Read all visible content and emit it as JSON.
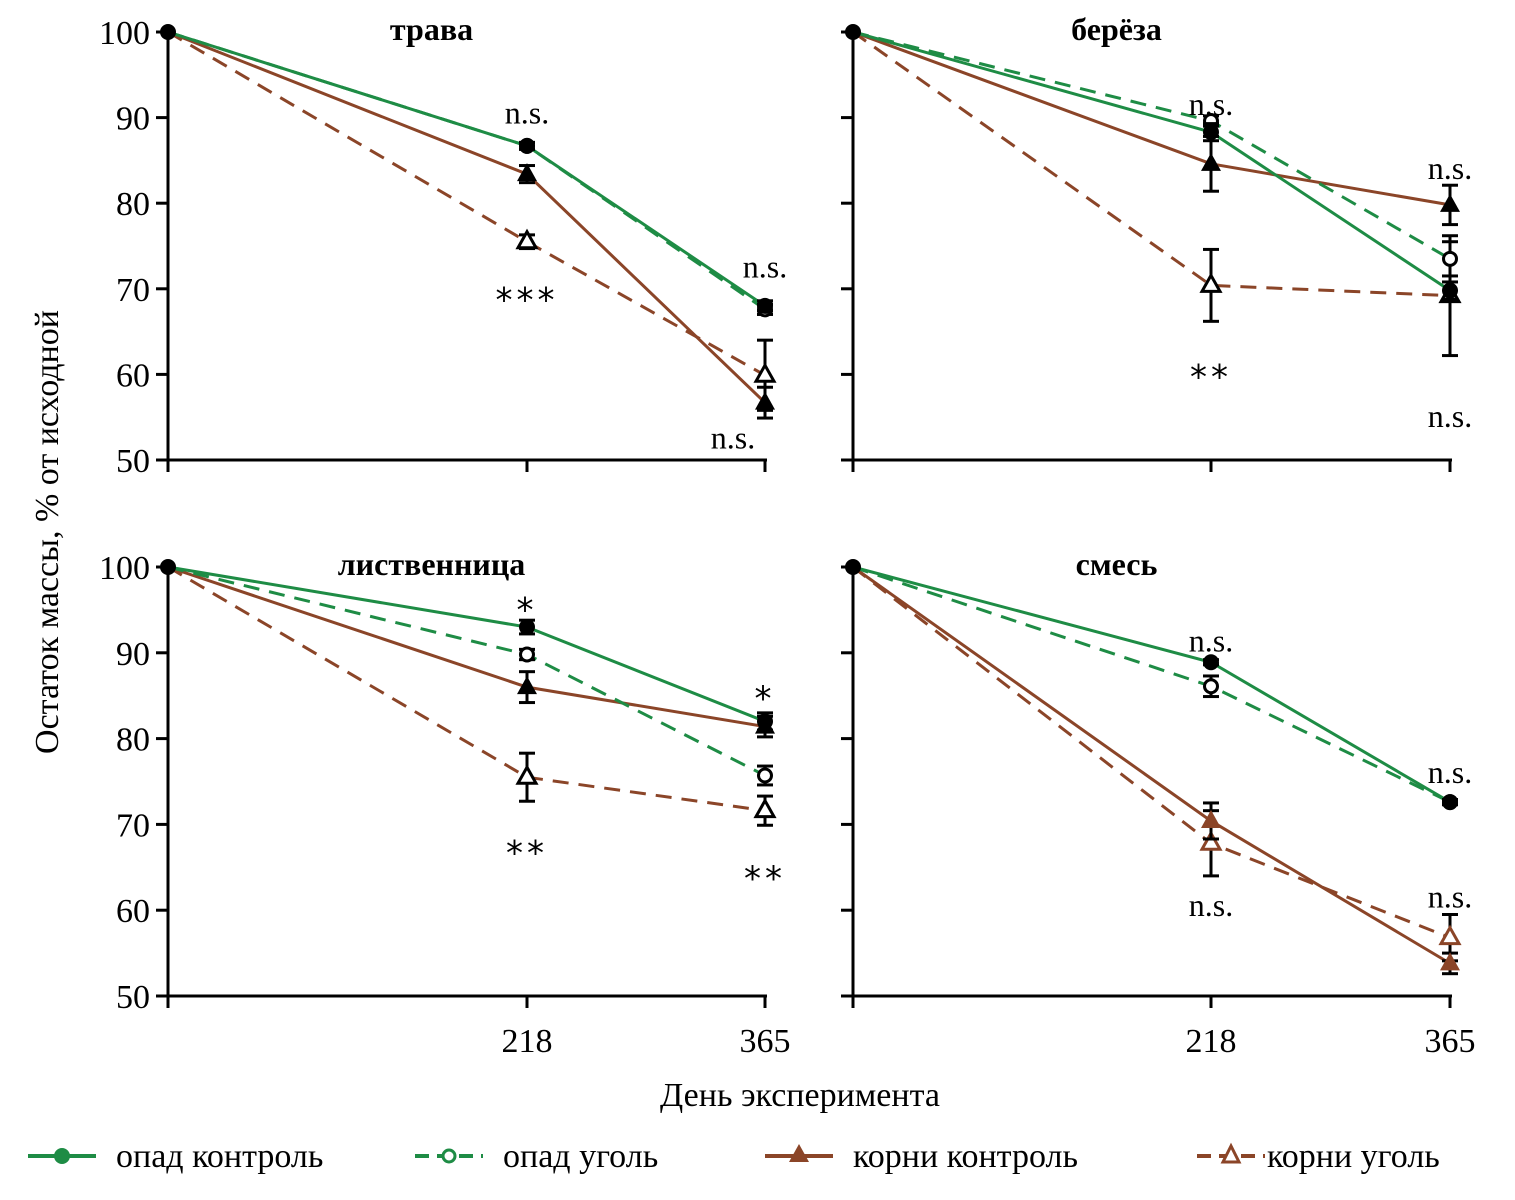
{
  "chart_data": {
    "type": "line",
    "ylabel": "Остаток массы, % от исходной",
    "xlabel": "День эксперимента",
    "ylim": [
      50,
      100
    ],
    "yticks": [
      50,
      60,
      70,
      80,
      90,
      100
    ],
    "x": [
      0,
      218,
      365
    ],
    "xtick_labels": [
      "",
      "218",
      "365"
    ],
    "legend": {
      "placement": "bottom",
      "entries": [
        {
          "key": "litter_control",
          "label": "опад контроль",
          "color": "#1e8c45",
          "dash": false,
          "marker": "filled-circle"
        },
        {
          "key": "litter_char",
          "label": "опад уголь",
          "color": "#1e8c45",
          "dash": true,
          "marker": "open-circle"
        },
        {
          "key": "roots_control",
          "label": "корни контроль",
          "color": "#8b4528",
          "dash": false,
          "marker": "filled-triangle"
        },
        {
          "key": "roots_char",
          "label": "корни уголь",
          "color": "#8b4528",
          "dash": true,
          "marker": "open-triangle"
        }
      ]
    },
    "panels": [
      {
        "title": "трава",
        "show_xtick_labels": false,
        "series": {
          "litter_control": {
            "values": [
              100,
              86.7,
              68.0
            ],
            "err": [
              0,
              0.4,
              0.6
            ]
          },
          "litter_char": {
            "values": [
              100,
              86.7,
              67.6
            ],
            "err": [
              0,
              0.4,
              0.6
            ]
          },
          "roots_control": {
            "values": [
              100,
              83.4,
              56.7
            ],
            "err": [
              0,
              1.0,
              1.8
            ]
          },
          "roots_char": {
            "values": [
              100,
              75.5,
              59.9
            ],
            "err": [
              0,
              0.8,
              4.1
            ]
          }
        },
        "annotations": [
          {
            "x": 218,
            "y": 90.5,
            "text": "n.s."
          },
          {
            "x": 218,
            "y": 68.5,
            "text": "***",
            "stars": true
          },
          {
            "x": 365,
            "y": 72.5,
            "text": "n.s."
          },
          {
            "x": 365,
            "y": 52.5,
            "text": "n.s.",
            "dx": -32
          }
        ]
      },
      {
        "title": "берёза",
        "show_xtick_labels": false,
        "series": {
          "litter_control": {
            "values": [
              100,
              88.3,
              69.8
            ],
            "err": [
              0,
              1.0,
              1.0
            ]
          },
          "litter_char": {
            "values": [
              100,
              89.6,
              73.5
            ],
            "err": [
              0,
              0.6,
              2.0
            ]
          },
          "roots_control": {
            "values": [
              100,
              84.6,
              79.8
            ],
            "err": [
              0,
              3.2,
              2.3
            ]
          },
          "roots_char": {
            "values": [
              100,
              70.4,
              69.2
            ],
            "err": [
              0,
              4.2,
              7.0
            ]
          }
        },
        "annotations": [
          {
            "x": 218,
            "y": 91.5,
            "text": "n.s."
          },
          {
            "x": 218,
            "y": 59.5,
            "text": "**",
            "stars": true
          },
          {
            "x": 365,
            "y": 84.0,
            "text": "n.s."
          },
          {
            "x": 365,
            "y": 55.0,
            "text": "n.s."
          }
        ]
      },
      {
        "title": "лиственница",
        "show_xtick_labels": true,
        "series": {
          "litter_control": {
            "values": [
              100,
              93.0,
              82.0
            ],
            "err": [
              0,
              0.8,
              1.0
            ]
          },
          "litter_char": {
            "values": [
              100,
              89.8,
              75.7
            ],
            "err": [
              0,
              0.6,
              1.1
            ]
          },
          "roots_control": {
            "values": [
              100,
              86.0,
              81.4
            ],
            "err": [
              0,
              1.8,
              1.2
            ]
          },
          "roots_char": {
            "values": [
              100,
              75.5,
              71.6
            ],
            "err": [
              0,
              2.8,
              1.7
            ]
          }
        },
        "annotations": [
          {
            "x": 218,
            "y": 94.8,
            "text": "*",
            "stars": true
          },
          {
            "x": 218,
            "y": 66.5,
            "text": "**",
            "stars": true
          },
          {
            "x": 365,
            "y": 84.5,
            "text": "*",
            "stars": true
          },
          {
            "x": 365,
            "y": 63.5,
            "text": "**",
            "stars": true
          }
        ]
      },
      {
        "title": "смесь",
        "show_xtick_labels": true,
        "series": {
          "litter_control": {
            "values": [
              100,
              88.9,
              72.6
            ],
            "err": [
              0,
              0.3,
              0.3
            ]
          },
          "litter_char": {
            "values": [
              100,
              86.1,
              72.6
            ],
            "err": [
              0,
              1.2,
              0.3
            ]
          },
          "roots_control": {
            "values": [
              100,
              70.4,
              53.8
            ],
            "err": [
              0,
              2.1,
              1.2
            ]
          },
          "roots_char": {
            "values": [
              100,
              67.8,
              56.8
            ],
            "err": [
              0,
              3.8,
              2.7
            ]
          }
        },
        "annotations": [
          {
            "x": 218,
            "y": 91.3,
            "text": "n.s."
          },
          {
            "x": 218,
            "y": 60.5,
            "text": "n.s."
          },
          {
            "x": 365,
            "y": 76.0,
            "text": "n.s."
          },
          {
            "x": 365,
            "y": 61.5,
            "text": "n.s."
          }
        ]
      }
    ]
  }
}
